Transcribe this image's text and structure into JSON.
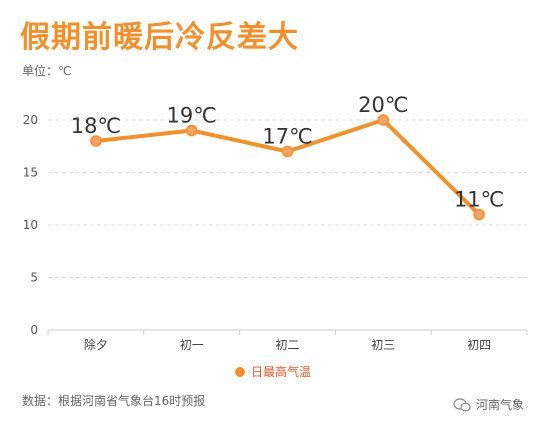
{
  "title": "假期前暖后冷反差大",
  "unit_label": "单位：℃",
  "source_note": "数据：根据河南省气象台16时预报",
  "watermark": "河南气象",
  "colors": {
    "accent": "#f0902e",
    "legend_text": "#e05a2b",
    "grid": "#dddddd",
    "axis": "#cccccc"
  },
  "chart_data": {
    "type": "line",
    "categories": [
      "除夕",
      "初一",
      "初二",
      "初三",
      "初四"
    ],
    "series": [
      {
        "name": "日最高气温",
        "values": [
          18,
          19,
          17,
          20,
          11
        ]
      }
    ],
    "data_labels": [
      "18℃",
      "19℃",
      "17℃",
      "20℃",
      "11℃"
    ],
    "y_ticks": [
      "0",
      "5",
      "10",
      "15",
      "20"
    ],
    "ylim": [
      0,
      20
    ],
    "grid": true,
    "legend_position": "bottom"
  }
}
